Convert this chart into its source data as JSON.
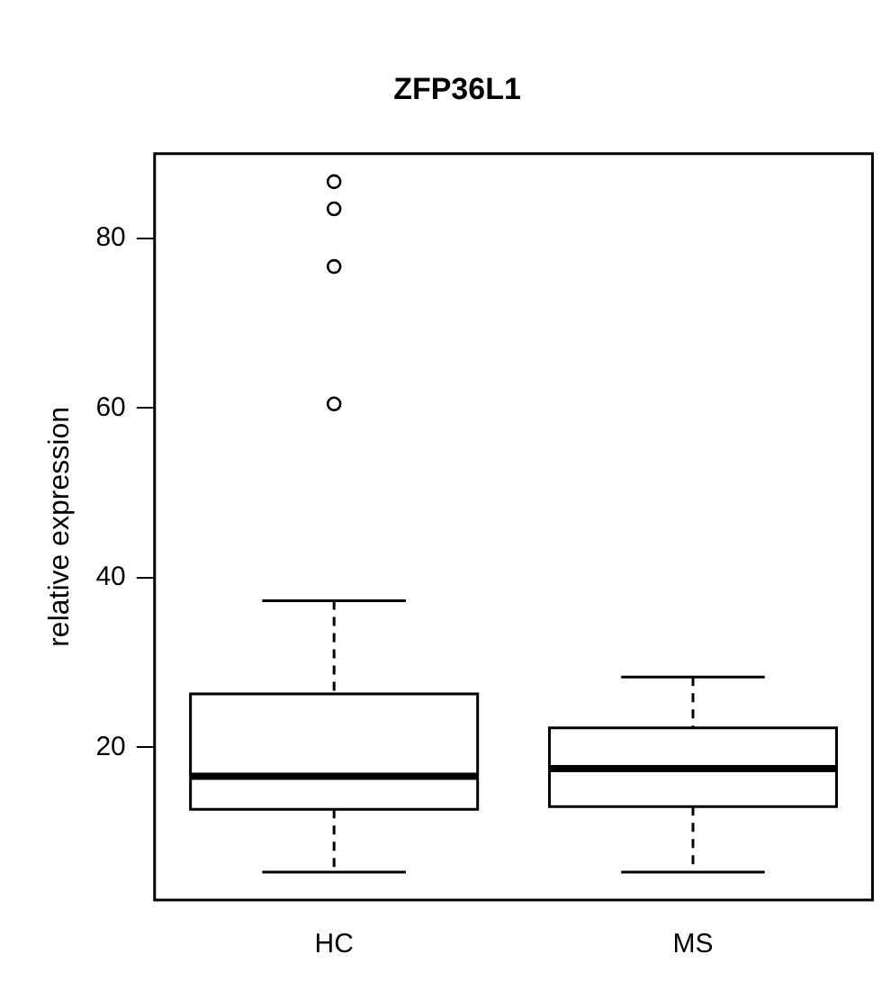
{
  "chart_data": {
    "type": "box",
    "title": "ZFP36L1",
    "ylabel": "relative expression",
    "categories": [
      "HC",
      "MS"
    ],
    "boxes": [
      {
        "low": 5.3,
        "q1": 12.7,
        "median": 16.6,
        "q3": 26.3,
        "high": 37.3,
        "outliers": [
          60.5,
          76.7,
          83.5,
          86.7
        ]
      },
      {
        "low": 5.3,
        "q1": 13.0,
        "median": 17.5,
        "q3": 22.3,
        "high": 28.3
      }
    ],
    "ylim": [
      2,
      90
    ],
    "yticks": [
      20,
      40,
      60,
      80
    ],
    "grid": false,
    "legend": false
  }
}
